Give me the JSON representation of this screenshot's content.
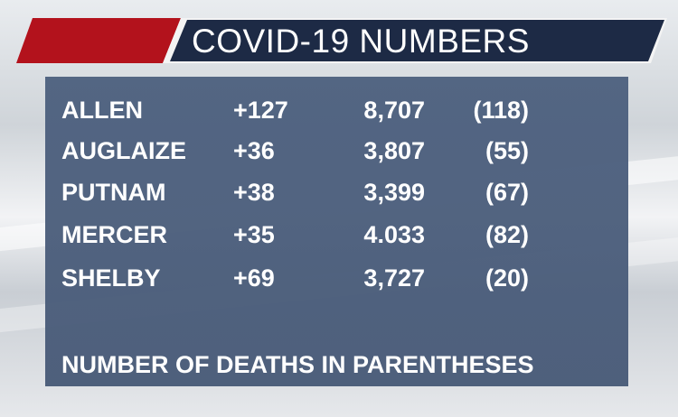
{
  "header": {
    "title": "COVID-19 NUMBERS"
  },
  "table": {
    "rows": [
      [
        "ALLEN",
        "+127",
        "8,707",
        "(118)"
      ],
      [
        "AUGLAIZE",
        "+36",
        "3,807",
        "(55)"
      ],
      [
        "PUTNAM",
        "+38",
        "3,399",
        "(67)"
      ],
      [
        "MERCER",
        "+35",
        "4.033",
        "(82)"
      ],
      [
        "SHELBY",
        "+69",
        "3,727",
        "(20)"
      ]
    ]
  },
  "footer": {
    "note": "NUMBER OF DEATHS IN PARENTHESES"
  }
}
